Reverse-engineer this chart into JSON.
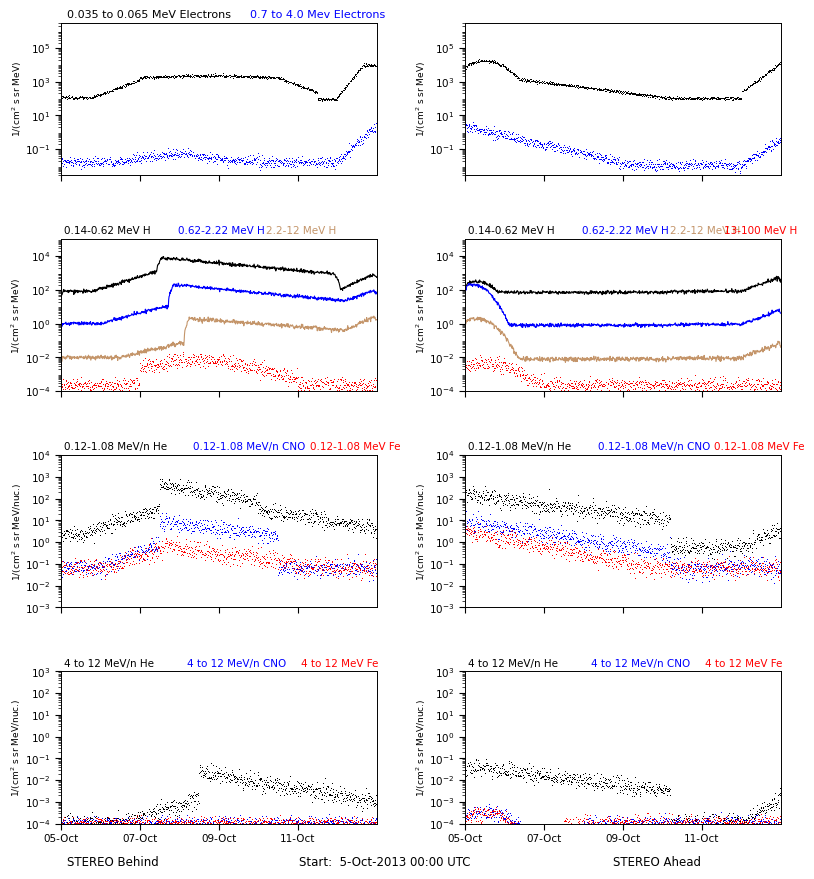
{
  "title_row1_left_black": "0.035 to 0.065 MeV Electrons",
  "title_row1_left_blue": "0.7 to 4.0 Mev Electrons",
  "title_row2_black": "0.14-0.62 MeV H",
  "title_row2_blue": "0.62-2.22 MeV H",
  "title_row2_tan": "2.2-12 MeV H",
  "title_row2_red": "13-100 MeV H",
  "title_row3_black": "0.12-1.08 MeV/n He",
  "title_row3_blue": "0.12-1.08 MeV/n CNO",
  "title_row3_red": "0.12-1.08 MeV Fe",
  "title_row4_black": "4 to 12 MeV/n He",
  "title_row4_blue": "4 to 12 MeV/n CNO",
  "title_row4_red": "4 to 12 MeV Fe",
  "xlabel_left": "STEREO Behind",
  "xlabel_center": "Start:  5-Oct-2013 00:00 UTC",
  "xlabel_right": "STEREO Ahead",
  "xtick_labels": [
    "05-Oct",
    "07-Oct",
    "09-Oct",
    "11-Oct"
  ],
  "colors": {
    "black": "#000000",
    "blue": "#0000ff",
    "red": "#ff0000",
    "tan": "#c4956a"
  },
  "ylims": {
    "row1": [
      0.003,
      3000000.0
    ],
    "row2": [
      0.0001,
      100000.0
    ],
    "row3": [
      0.001,
      10000.0
    ],
    "row4": [
      0.0001,
      1000.0
    ]
  }
}
